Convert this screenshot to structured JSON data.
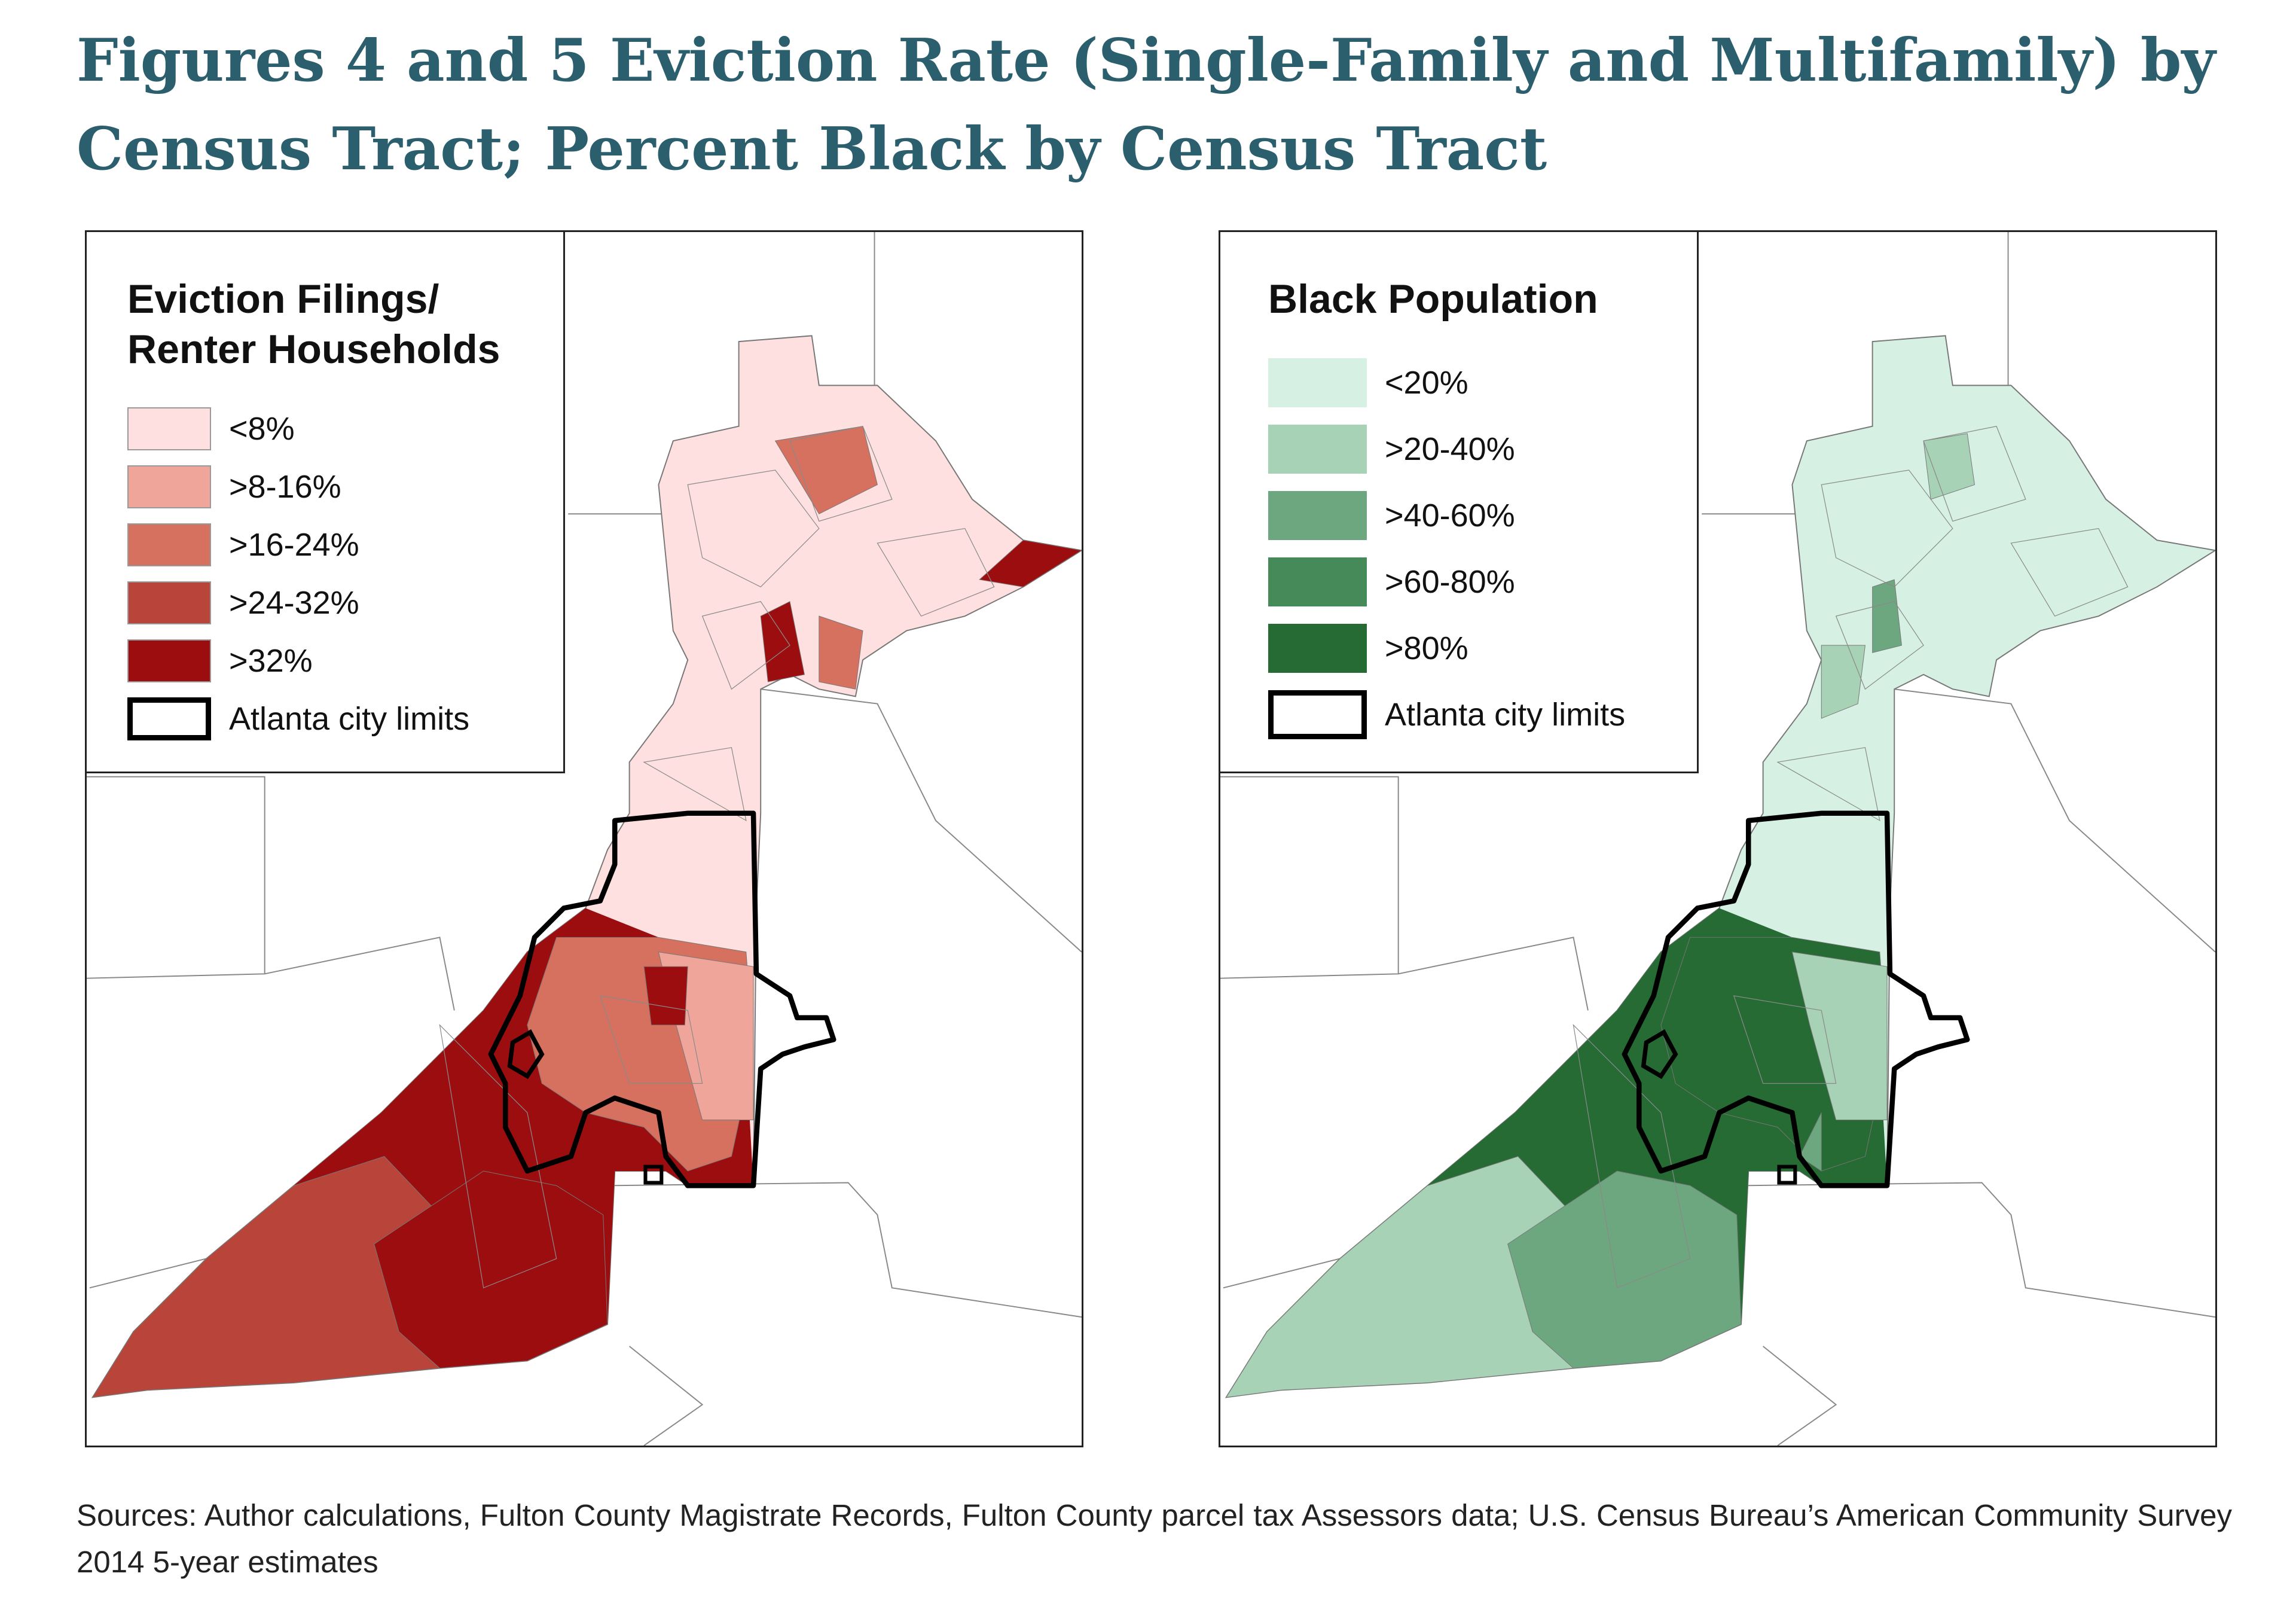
{
  "title": "Figures 4 and 5 Eviction Rate (Single-Family and Multifamily) by Census Tract; Percent Black by Census Tract",
  "maps": [
    {
      "legend_title": "Eviction Filings/ Renter Households",
      "legend": [
        {
          "label": "<8%",
          "color": "#fde0df"
        },
        {
          "label": ">8-16%",
          "color": "#f0a59a"
        },
        {
          "label": ">16-24%",
          "color": "#d6705f"
        },
        {
          "label": ">24-32%",
          "color": "#b8443a"
        },
        {
          "label": ">32%",
          "color": "#9c0d0f"
        }
      ],
      "city_limits_label": "Atlanta city limits"
    },
    {
      "legend_title": "Black Population",
      "legend": [
        {
          "label": "<20%",
          "color": "#d6f1e4"
        },
        {
          "label": ">20-40%",
          "color": "#a8d2b5"
        },
        {
          "label": ">40-60%",
          "color": "#6da77f"
        },
        {
          "label": ">60-80%",
          "color": "#458a58"
        },
        {
          "label": ">80%",
          "color": "#266a34"
        }
      ],
      "city_limits_label": "Atlanta city limits"
    }
  ],
  "sources": "Sources: Author calculations, Fulton County Magistrate Records, Fulton County parcel tax Assessors data; U.S. Census Bureau’s American Community Survey 2014 5-year estimates"
}
